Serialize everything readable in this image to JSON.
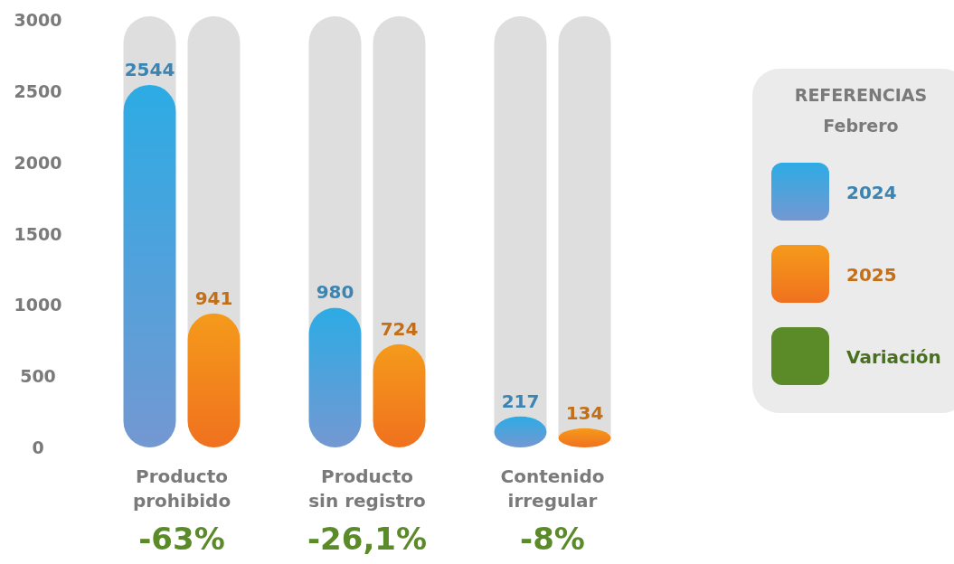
{
  "chart_data": {
    "type": "bar",
    "categories": [
      "Producto prohibido",
      "Producto sin registro",
      "Contenido irregular"
    ],
    "series": [
      {
        "name": "2024",
        "color": "#4aa3dc",
        "values": [
          2544,
          980,
          217
        ]
      },
      {
        "name": "2025",
        "color": "#f28a1c",
        "values": [
          941,
          724,
          134
        ]
      }
    ],
    "ylim": [
      0,
      3000
    ],
    "yticks": [
      0,
      500,
      1000,
      1500,
      2000,
      2500,
      3000
    ],
    "grid": false,
    "data_labels": true,
    "legend": "right",
    "legend_title": "REFERENCIAS",
    "subtitle": "Febrero",
    "annotations": [
      "-63%",
      "-26,1%",
      "-8%",
      "Variación"
    ]
  }
}
